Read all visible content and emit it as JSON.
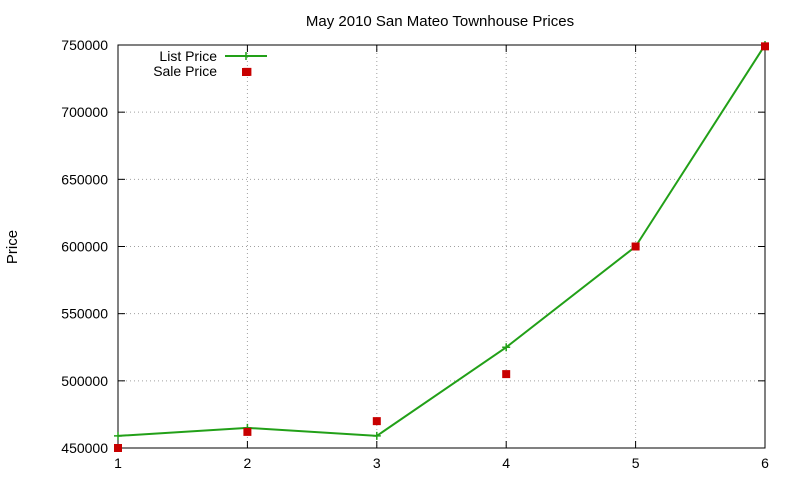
{
  "chart_data": {
    "type": "line",
    "title": "May 2010 San Mateo Townhouse Prices",
    "xlabel": "",
    "ylabel": "Price",
    "xlim": [
      1,
      6
    ],
    "ylim": [
      450000,
      750000
    ],
    "x_ticks": [
      "1",
      "2",
      "3",
      "4",
      "5",
      "6"
    ],
    "y_ticks": [
      "450000",
      "500000",
      "550000",
      "600000",
      "650000",
      "700000",
      "750000"
    ],
    "grid": true,
    "legend_position": "top-left",
    "series": [
      {
        "name": "List Price",
        "style": "linespoints",
        "color": "#22a018",
        "points": [
          [
            1,
            459000
          ],
          [
            2,
            465000
          ],
          [
            3,
            459000
          ],
          [
            4,
            525000
          ],
          [
            5,
            600000
          ],
          [
            6,
            750000
          ]
        ]
      },
      {
        "name": "Sale Price",
        "style": "points",
        "color": "#c80000",
        "points": [
          [
            1,
            450000
          ],
          [
            2,
            730000
          ],
          [
            2,
            462000
          ],
          [
            3,
            470000
          ],
          [
            4,
            505000
          ],
          [
            5,
            600000
          ],
          [
            6,
            749000
          ]
        ]
      }
    ]
  }
}
